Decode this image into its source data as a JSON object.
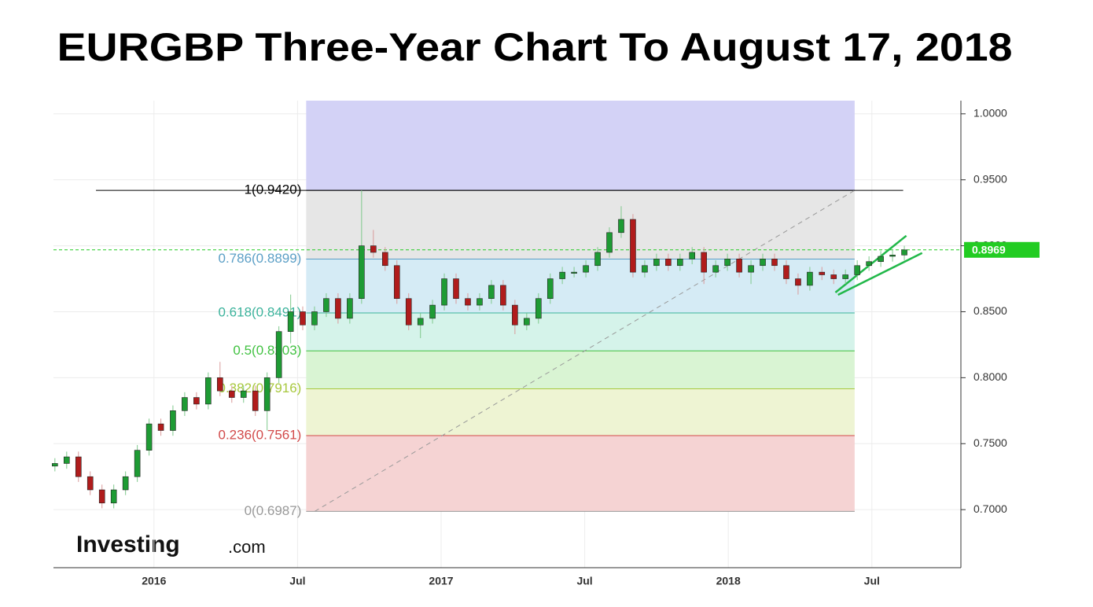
{
  "chart_data": {
    "type": "candlestick",
    "title": "EURGBP  Three-Year Chart To August 17, 2018",
    "watermark": [
      "Investing",
      ".com"
    ],
    "xlim": [
      2015.65,
      2018.81
    ],
    "xticks": [
      {
        "value": 2016,
        "label": "2016"
      },
      {
        "value": 2016.5,
        "label": "Jul"
      },
      {
        "value": 2017,
        "label": "2017"
      },
      {
        "value": 2017.5,
        "label": "Jul"
      },
      {
        "value": 2018,
        "label": "2018"
      },
      {
        "value": 2018.5,
        "label": "Jul"
      }
    ],
    "ylim": [
      0.656,
      1.01
    ],
    "yticks": [
      {
        "value": 0.7,
        "label": "0.7000"
      },
      {
        "value": 0.75,
        "label": "0.7500"
      },
      {
        "value": 0.8,
        "label": "0.8000"
      },
      {
        "value": 0.85,
        "label": "0.8500"
      },
      {
        "value": 0.9,
        "label": "0.9000"
      },
      {
        "value": 0.95,
        "label": "0.9500"
      },
      {
        "value": 1.0,
        "label": "1.0000"
      }
    ],
    "grid": true,
    "up_color": "#1e9b34",
    "down_color": "#b01c1c",
    "current_price": {
      "value": 0.8969,
      "label": "0.8969",
      "color": "#22cc22"
    },
    "x": [
      2015.655,
      2015.696,
      2015.737,
      2015.778,
      2015.819,
      2015.86,
      2015.901,
      2015.942,
      2015.983,
      2016.024,
      2016.066,
      2016.107,
      2016.148,
      2016.189,
      2016.23,
      2016.271,
      2016.312,
      2016.353,
      2016.394,
      2016.435,
      2016.476,
      2016.518,
      2016.559,
      2016.6,
      2016.641,
      2016.682,
      2016.723,
      2016.764,
      2016.805,
      2016.846,
      2016.887,
      2016.928,
      2016.97,
      2017.011,
      2017.052,
      2017.093,
      2017.134,
      2017.175,
      2017.216,
      2017.257,
      2017.298,
      2017.339,
      2017.38,
      2017.422,
      2017.463,
      2017.504,
      2017.545,
      2017.586,
      2017.627,
      2017.668,
      2017.709,
      2017.75,
      2017.791,
      2017.832,
      2017.874,
      2017.915,
      2017.956,
      2017.997,
      2018.038,
      2018.079,
      2018.12,
      2018.161,
      2018.202,
      2018.243,
      2018.284,
      2018.326,
      2018.367,
      2018.408,
      2018.449,
      2018.49,
      2018.531,
      2018.572,
      2018.613
    ],
    "open": [
      0.733,
      0.735,
      0.74,
      0.725,
      0.715,
      0.705,
      0.715,
      0.725,
      0.745,
      0.765,
      0.76,
      0.775,
      0.785,
      0.78,
      0.8,
      0.79,
      0.785,
      0.79,
      0.775,
      0.8,
      0.835,
      0.85,
      0.84,
      0.85,
      0.86,
      0.845,
      0.86,
      0.9,
      0.895,
      0.885,
      0.86,
      0.84,
      0.845,
      0.855,
      0.875,
      0.86,
      0.855,
      0.86,
      0.87,
      0.855,
      0.84,
      0.845,
      0.86,
      0.875,
      0.88,
      0.88,
      0.885,
      0.895,
      0.91,
      0.92,
      0.88,
      0.885,
      0.89,
      0.885,
      0.89,
      0.895,
      0.88,
      0.885,
      0.89,
      0.88,
      0.885,
      0.89,
      0.885,
      0.875,
      0.87,
      0.88,
      0.878,
      0.875,
      0.878,
      0.885,
      0.888,
      0.892,
      0.893
    ],
    "high": [
      0.739,
      0.744,
      0.744,
      0.729,
      0.719,
      0.719,
      0.729,
      0.749,
      0.769,
      0.769,
      0.779,
      0.789,
      0.789,
      0.804,
      0.812,
      0.794,
      0.794,
      0.794,
      0.804,
      0.839,
      0.863,
      0.854,
      0.854,
      0.864,
      0.864,
      0.864,
      0.942,
      0.912,
      0.899,
      0.889,
      0.864,
      0.849,
      0.859,
      0.879,
      0.879,
      0.864,
      0.864,
      0.874,
      0.874,
      0.859,
      0.849,
      0.864,
      0.879,
      0.884,
      0.884,
      0.889,
      0.899,
      0.914,
      0.93,
      0.924,
      0.889,
      0.894,
      0.894,
      0.894,
      0.899,
      0.899,
      0.889,
      0.894,
      0.894,
      0.889,
      0.894,
      0.894,
      0.889,
      0.879,
      0.884,
      0.884,
      0.882,
      0.882,
      0.889,
      0.892,
      0.896,
      0.897,
      0.9
    ],
    "low": [
      0.729,
      0.731,
      0.721,
      0.711,
      0.701,
      0.701,
      0.711,
      0.721,
      0.741,
      0.756,
      0.756,
      0.771,
      0.776,
      0.776,
      0.786,
      0.781,
      0.781,
      0.771,
      0.76,
      0.796,
      0.826,
      0.836,
      0.836,
      0.846,
      0.841,
      0.841,
      0.856,
      0.891,
      0.881,
      0.856,
      0.836,
      0.83,
      0.841,
      0.851,
      0.856,
      0.851,
      0.851,
      0.856,
      0.851,
      0.833,
      0.836,
      0.841,
      0.856,
      0.871,
      0.876,
      0.876,
      0.881,
      0.891,
      0.906,
      0.876,
      0.876,
      0.881,
      0.881,
      0.881,
      0.886,
      0.871,
      0.876,
      0.881,
      0.876,
      0.871,
      0.881,
      0.881,
      0.871,
      0.863,
      0.866,
      0.874,
      0.871,
      0.871,
      0.874,
      0.881,
      0.884,
      0.888,
      0.889
    ],
    "close": [
      0.735,
      0.74,
      0.725,
      0.715,
      0.705,
      0.715,
      0.725,
      0.745,
      0.765,
      0.76,
      0.775,
      0.785,
      0.78,
      0.8,
      0.79,
      0.785,
      0.79,
      0.775,
      0.8,
      0.835,
      0.85,
      0.84,
      0.85,
      0.86,
      0.845,
      0.86,
      0.9,
      0.895,
      0.885,
      0.86,
      0.84,
      0.845,
      0.855,
      0.875,
      0.86,
      0.855,
      0.86,
      0.87,
      0.855,
      0.84,
      0.845,
      0.86,
      0.875,
      0.88,
      0.88,
      0.885,
      0.895,
      0.91,
      0.92,
      0.88,
      0.885,
      0.89,
      0.885,
      0.89,
      0.895,
      0.88,
      0.885,
      0.89,
      0.88,
      0.885,
      0.89,
      0.885,
      0.875,
      0.87,
      0.88,
      0.878,
      0.875,
      0.878,
      0.885,
      0.888,
      0.892,
      0.893,
      0.8969
    ],
    "fib": {
      "x": [
        2016.53,
        2018.44
      ],
      "top_color": "#d3d2f6",
      "levels": [
        {
          "label": "1(0.9420)",
          "value": 0.942,
          "color": "#000000",
          "band": "#e6e6e6"
        },
        {
          "label": "0.786(0.8899)",
          "value": 0.8899,
          "color": "#5b9fc6",
          "band": "#d5ebf5"
        },
        {
          "label": "0.618(0.8491)",
          "value": 0.8491,
          "color": "#3cb39c",
          "band": "#d5f3ea"
        },
        {
          "label": "0.5(0.8203)",
          "value": 0.8203,
          "color": "#42c242",
          "band": "#d9f4d3"
        },
        {
          "label": "0.382(0.7916)",
          "value": 0.7916,
          "color": "#a8c83e",
          "band": "#eef4d3"
        },
        {
          "label": "0.236(0.7561)",
          "value": 0.7561,
          "color": "#d24a4a",
          "band": "#f5d3d3"
        },
        {
          "label": "0(0.6987)",
          "value": 0.6987,
          "color": "#999999"
        }
      ]
    },
    "lines": [
      {
        "x": [
          2015.798,
          2018.609
        ],
        "y": [
          0.942,
          0.942
        ],
        "color": "#000000",
        "dash": false
      },
      {
        "x": [
          2016.56,
          2018.44
        ],
        "y": [
          0.6987,
          0.942
        ],
        "color": "#999999",
        "dash": true
      },
      {
        "x": [
          2018.373,
          2018.62
        ],
        "y": [
          0.8646,
          0.9076
        ],
        "color": "#22b84a",
        "dash": false
      },
      {
        "x": [
          2018.382,
          2018.675
        ],
        "y": [
          0.8628,
          0.8945
        ],
        "color": "#22b84a",
        "dash": false
      }
    ]
  }
}
